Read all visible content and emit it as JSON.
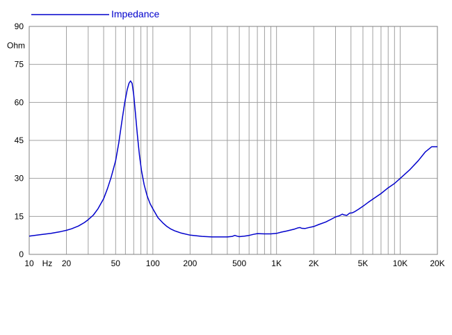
{
  "chart_data": {
    "type": "line",
    "title": "",
    "xlabel": "Hz",
    "ylabel": "Ohm",
    "xscale": "log",
    "xlim": [
      10,
      20000
    ],
    "ylim": [
      0,
      90
    ],
    "grid": true,
    "legend_position": "top-left",
    "x_ticks": [
      {
        "value": 10,
        "label": "10"
      },
      {
        "value": 20,
        "label": "20"
      },
      {
        "value": 50,
        "label": "50"
      },
      {
        "value": 100,
        "label": "100"
      },
      {
        "value": 200,
        "label": "200"
      },
      {
        "value": 500,
        "label": "500"
      },
      {
        "value": 1000,
        "label": "1K"
      },
      {
        "value": 2000,
        "label": "2K"
      },
      {
        "value": 5000,
        "label": "5K"
      },
      {
        "value": 10000,
        "label": "10K"
      },
      {
        "value": 20000,
        "label": "20K"
      }
    ],
    "y_ticks": [
      0,
      15,
      30,
      45,
      60,
      75,
      90
    ],
    "series": [
      {
        "name": "Impedance",
        "color": "#0000cc",
        "x": [
          10,
          12,
          15,
          18,
          20,
          22,
          25,
          28,
          30,
          33,
          36,
          40,
          43,
          46,
          50,
          53,
          56,
          59,
          62,
          64,
          66,
          68,
          70,
          72,
          75,
          78,
          81,
          85,
          90,
          95,
          100,
          110,
          120,
          130,
          140,
          150,
          170,
          200,
          250,
          300,
          350,
          400,
          440,
          460,
          480,
          500,
          550,
          600,
          650,
          700,
          800,
          900,
          1000,
          1100,
          1200,
          1300,
          1400,
          1500,
          1550,
          1600,
          1700,
          1800,
          2000,
          2200,
          2500,
          2800,
          3000,
          3200,
          3400,
          3500,
          3700,
          3900,
          4100,
          4300,
          4600,
          5000,
          5500,
          6000,
          7000,
          8000,
          9000,
          10000,
          11000,
          12000,
          14000,
          16000,
          18000,
          20000
        ],
        "values": [
          7.2,
          7.7,
          8.3,
          9.0,
          9.5,
          10.1,
          11.2,
          12.6,
          13.7,
          15.5,
          18.0,
          22.0,
          26.0,
          30.5,
          37.0,
          44.0,
          52.0,
          59.5,
          65.0,
          67.5,
          68.5,
          67.5,
          63.0,
          56.5,
          47.0,
          39.0,
          33.0,
          27.5,
          23.0,
          20.0,
          18.0,
          14.5,
          12.5,
          11.0,
          10.0,
          9.3,
          8.4,
          7.6,
          7.1,
          6.9,
          6.9,
          6.9,
          7.1,
          7.5,
          7.2,
          7.0,
          7.2,
          7.5,
          7.9,
          8.2,
          8.1,
          8.1,
          8.3,
          8.8,
          9.2,
          9.6,
          10.0,
          10.5,
          10.6,
          10.3,
          10.2,
          10.5,
          11.0,
          11.8,
          12.8,
          14.0,
          14.8,
          15.2,
          15.9,
          15.6,
          15.4,
          16.3,
          16.4,
          16.9,
          17.8,
          19.0,
          20.5,
          21.8,
          24.0,
          26.3,
          28.0,
          30.0,
          31.8,
          33.5,
          37.0,
          40.5,
          42.5,
          42.5
        ]
      }
    ]
  }
}
